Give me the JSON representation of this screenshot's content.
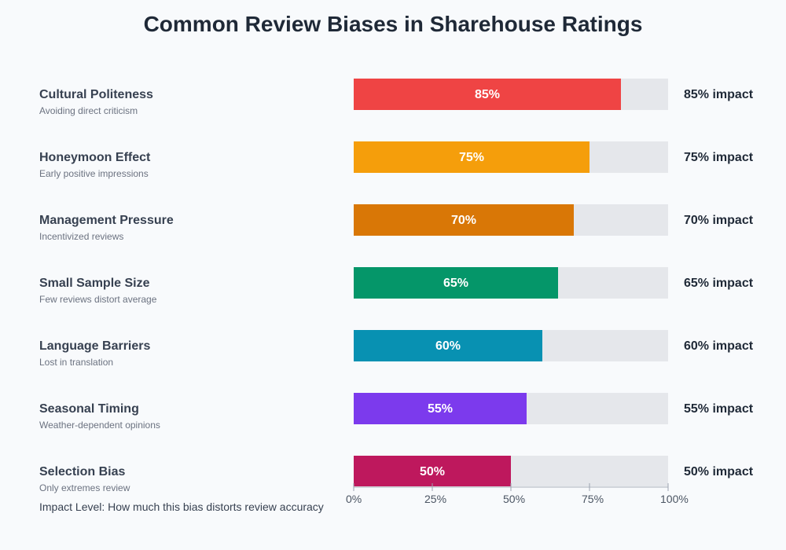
{
  "chart_data": {
    "type": "bar",
    "orientation": "horizontal",
    "title": "Common Review Biases in Sharehouse Ratings",
    "categories": [
      "Cultural Politeness",
      "Honeymoon Effect",
      "Management Pressure",
      "Small Sample Size",
      "Language Barriers",
      "Seasonal Timing",
      "Selection Bias"
    ],
    "descriptions": [
      "Avoiding direct criticism",
      "Early positive impressions",
      "Incentivized reviews",
      "Few reviews distort average",
      "Lost in translation",
      "Weather-dependent opinions",
      "Only extremes review"
    ],
    "values": [
      85,
      75,
      70,
      65,
      60,
      55,
      50
    ],
    "bar_labels": [
      "85%",
      "75%",
      "70%",
      "65%",
      "60%",
      "55%",
      "50%"
    ],
    "impact_labels": [
      "85% impact",
      "75% impact",
      "70% impact",
      "65% impact",
      "60% impact",
      "55% impact",
      "50% impact"
    ],
    "colors": [
      "#ef4444",
      "#f59e0b",
      "#d97706",
      "#059669",
      "#0891b2",
      "#7c3aed",
      "#be185d"
    ],
    "track_color": "#e5e7eb",
    "xlim": [
      0,
      100
    ],
    "xticks": [
      0,
      25,
      50,
      75,
      100
    ],
    "xtick_labels": [
      "0%",
      "25%",
      "50%",
      "75%",
      "100%"
    ],
    "xlabel": "Impact Level: How much this bias distorts review accuracy",
    "grid": false
  }
}
